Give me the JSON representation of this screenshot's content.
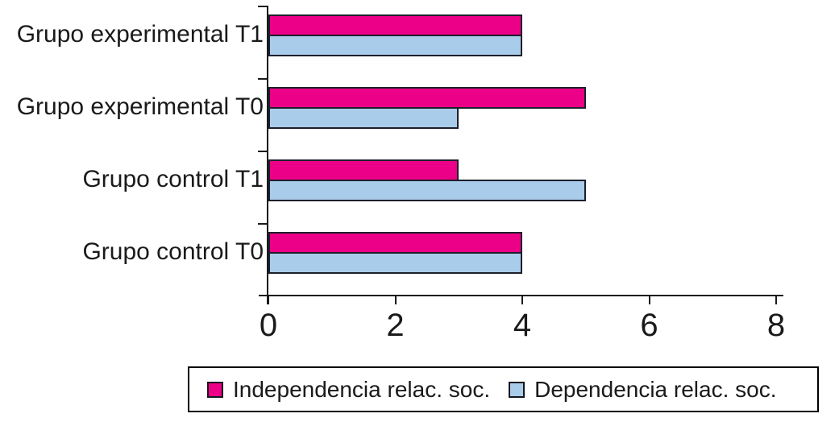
{
  "chart_data": {
    "type": "bar",
    "orientation": "horizontal",
    "title": "",
    "categories": [
      "Grupo experimental T1",
      "Grupo experimental T0",
      "Grupo control T1",
      "Grupo control T0"
    ],
    "series": [
      {
        "name": "Independencia relac. soc.",
        "color": "#EC0087",
        "values": [
          4,
          5,
          3,
          4
        ]
      },
      {
        "name": "Dependencia relac. soc.",
        "color": "#A9CCEA",
        "values": [
          4,
          3,
          5,
          4
        ]
      }
    ],
    "xlabel": "",
    "ylabel": "",
    "xlim": [
      0,
      8
    ],
    "x_ticks": [
      0,
      2,
      4,
      6,
      8
    ],
    "grid": false,
    "legend_position": "bottom",
    "axis_color": "#1a1a1a",
    "bar_border_color": "#1d1f2b",
    "background": "#ffffff"
  }
}
